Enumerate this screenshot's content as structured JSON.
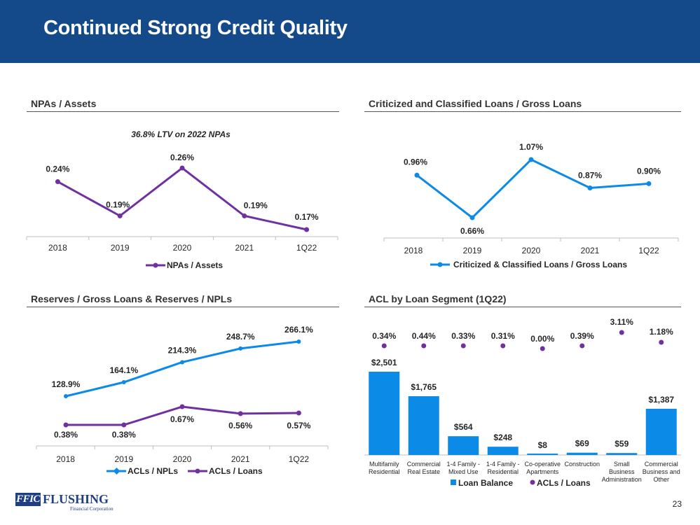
{
  "page": {
    "title": "Continued Strong Credit Quality",
    "page_number": "23"
  },
  "logo": {
    "mark": "FFIC",
    "name": "FLUSHING",
    "subtitle": "Financial Corporation"
  },
  "colors": {
    "banner": "#154a8a",
    "purple": "#7030a0",
    "blue": "#0b8ae8",
    "bar_blue": "#0b8ae8"
  },
  "sections": {
    "npa": "NPAs / Assets",
    "criticized": "Criticized and Classified Loans / Gross Loans",
    "reserves": "Reserves / Gross Loans & Reserves / NPLs",
    "acl": "ACL by Loan Segment (1Q22)"
  },
  "chart_data": [
    {
      "id": "npa",
      "type": "line",
      "title": "36.8% LTV on 2022 NPAs",
      "categories": [
        "2018",
        "2019",
        "2020",
        "2021",
        "1Q22"
      ],
      "series": [
        {
          "name": "NPAs / Assets",
          "color": "#7030a0",
          "values": [
            0.24,
            0.19,
            0.26,
            0.19,
            0.17
          ],
          "labels": [
            "0.24%",
            "0.19%",
            "0.26%",
            "0.19%",
            "0.17%"
          ]
        }
      ],
      "ylim": [
        0.12,
        0.27
      ],
      "legend": "bottom"
    },
    {
      "id": "criticized",
      "type": "line",
      "categories": [
        "2018",
        "2019",
        "2020",
        "2021",
        "1Q22"
      ],
      "series": [
        {
          "name": "Criticized & Classified Loans / Gross Loans",
          "color": "#0b8ae8",
          "values": [
            0.96,
            0.66,
            1.07,
            0.87,
            0.9
          ],
          "labels": [
            "0.96%",
            "0.66%",
            "1.07%",
            "0.87%",
            "0.90%"
          ]
        }
      ],
      "ylim": [
        0.6,
        1.1
      ],
      "legend": "bottom"
    },
    {
      "id": "reserves",
      "type": "line",
      "categories": [
        "2018",
        "2019",
        "2020",
        "2021",
        "1Q22"
      ],
      "series": [
        {
          "name": "ACLs / NPLs",
          "color": "#0b8ae8",
          "values": [
            128.9,
            164.1,
            214.3,
            248.7,
            266.1
          ],
          "labels": [
            "128.9%",
            "164.1%",
            "214.3%",
            "248.7%",
            "266.1%"
          ]
        },
        {
          "name": "ACLs / Loans",
          "color": "#7030a0",
          "values": [
            0.38,
            0.38,
            0.67,
            0.56,
            0.57
          ],
          "labels": [
            "0.38%",
            "0.38%",
            "0.67%",
            "0.56%",
            "0.57%"
          ]
        }
      ],
      "legend": "bottom"
    },
    {
      "id": "acl",
      "type": "bar",
      "categories": [
        [
          "Multifamily",
          "Residential"
        ],
        [
          "Commercial",
          "Real Estate"
        ],
        [
          "1-4 Family -",
          "Mixed Use"
        ],
        [
          "1-4 Family -",
          "Residential"
        ],
        [
          "Co-operative",
          "Apartments"
        ],
        [
          "Construction"
        ],
        [
          "Small",
          "Business",
          "Administration"
        ],
        [
          "Commercial",
          "Business and",
          "Other"
        ]
      ],
      "series": [
        {
          "name": "Loan Balance",
          "color": "#0b8ae8",
          "values": [
            2501,
            1765,
            564,
            248,
            8,
            69,
            59,
            1387
          ],
          "labels": [
            "$2,501",
            "$1,765",
            "$564",
            "$248",
            "$8",
            "$69",
            "$59",
            "$1,387"
          ]
        },
        {
          "name": "ACLs / Loans",
          "color": "#7030a0",
          "values": [
            0.34,
            0.44,
            0.33,
            0.31,
            0.0,
            0.39,
            3.11,
            1.18
          ],
          "labels": [
            "0.34%",
            "0.44%",
            "0.33%",
            "0.31%",
            "0.00%",
            "0.39%",
            "3.11%",
            "1.18%"
          ]
        }
      ],
      "ylim": [
        0,
        2600
      ],
      "legend": "bottom"
    }
  ]
}
